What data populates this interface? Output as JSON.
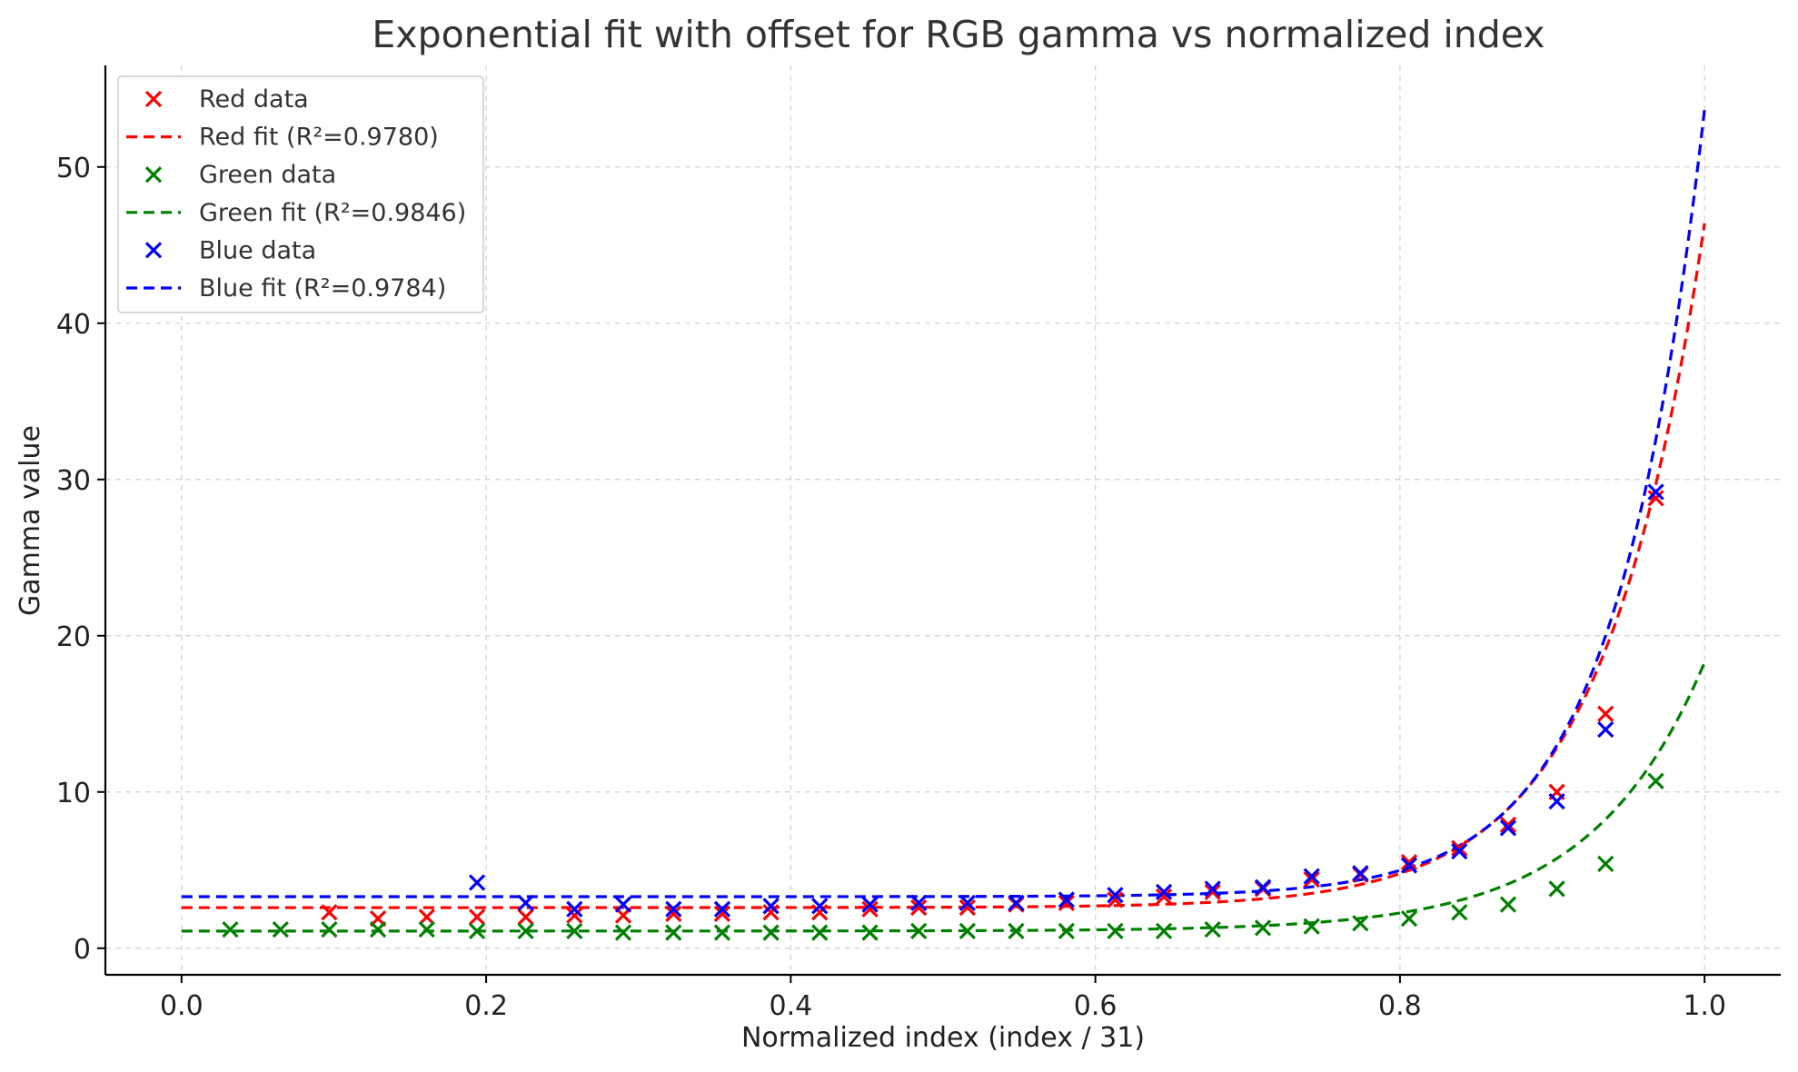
{
  "chart_data": {
    "type": "scatter",
    "title": "Exponential fit with offset for RGB gamma vs normalized index",
    "xlabel": "Normalized index (index / 31)",
    "ylabel": "Gamma value",
    "xlim": [
      -0.05,
      1.05
    ],
    "ylim": [
      -1.7,
      56.5
    ],
    "xticks": [
      0.0,
      0.2,
      0.4,
      0.6,
      0.8,
      1.0
    ],
    "xtick_labels": [
      "0.0",
      "0.2",
      "0.4",
      "0.6",
      "0.8",
      "1.0"
    ],
    "yticks": [
      0,
      10,
      20,
      30,
      40,
      50
    ],
    "ytick_labels": [
      "0",
      "10",
      "20",
      "30",
      "40",
      "50"
    ],
    "grid": true,
    "legend_position": "top-left",
    "x": [
      0.032,
      0.065,
      0.097,
      0.129,
      0.161,
      0.194,
      0.226,
      0.258,
      0.29,
      0.323,
      0.355,
      0.387,
      0.419,
      0.452,
      0.484,
      0.516,
      0.548,
      0.581,
      0.613,
      0.645,
      0.677,
      0.71,
      0.742,
      0.774,
      0.806,
      0.839,
      0.871,
      0.903,
      0.935,
      0.968
    ],
    "series": [
      {
        "name": "Red data",
        "kind": "scatter",
        "color": "#ff0000",
        "values": [
          null,
          null,
          2.3,
          1.9,
          2.0,
          2.0,
          2.0,
          2.1,
          2.1,
          2.2,
          2.2,
          2.3,
          2.3,
          2.5,
          2.6,
          2.6,
          2.8,
          2.9,
          3.1,
          3.3,
          3.6,
          3.8,
          4.4,
          4.7,
          5.5,
          6.4,
          7.9,
          10.0,
          15.0,
          28.8
        ]
      },
      {
        "name": "Red fit (R²=0.9780)",
        "kind": "fit",
        "color": "#ff0000",
        "offset": 2.6,
        "amplitude": 43.8,
        "rate": 15.0
      },
      {
        "name": "Green data",
        "kind": "scatter",
        "color": "#008000",
        "values": [
          1.2,
          1.2,
          1.2,
          1.2,
          1.2,
          1.1,
          1.1,
          1.1,
          1.0,
          1.0,
          1.0,
          1.0,
          1.0,
          1.0,
          1.1,
          1.1,
          1.1,
          1.1,
          1.1,
          1.1,
          1.2,
          1.3,
          1.4,
          1.6,
          1.9,
          2.3,
          2.8,
          3.8,
          5.4,
          10.7
        ]
      },
      {
        "name": "Green fit (R²=0.9846)",
        "kind": "fit",
        "color": "#008000",
        "offset": 1.1,
        "amplitude": 17.2,
        "rate": 13.5
      },
      {
        "name": "Blue data",
        "kind": "scatter",
        "color": "#0000ff",
        "values": [
          null,
          null,
          null,
          null,
          null,
          4.2,
          2.9,
          2.5,
          2.8,
          2.5,
          2.5,
          2.7,
          2.7,
          2.8,
          2.9,
          2.9,
          2.9,
          3.1,
          3.4,
          3.6,
          3.8,
          3.9,
          4.6,
          4.8,
          5.3,
          6.2,
          7.7,
          9.4,
          14.0,
          29.2
        ]
      },
      {
        "name": "Blue fit (R²=0.9784)",
        "kind": "fit",
        "color": "#0000ff",
        "offset": 3.3,
        "amplitude": 50.4,
        "rate": 17.0
      }
    ]
  }
}
